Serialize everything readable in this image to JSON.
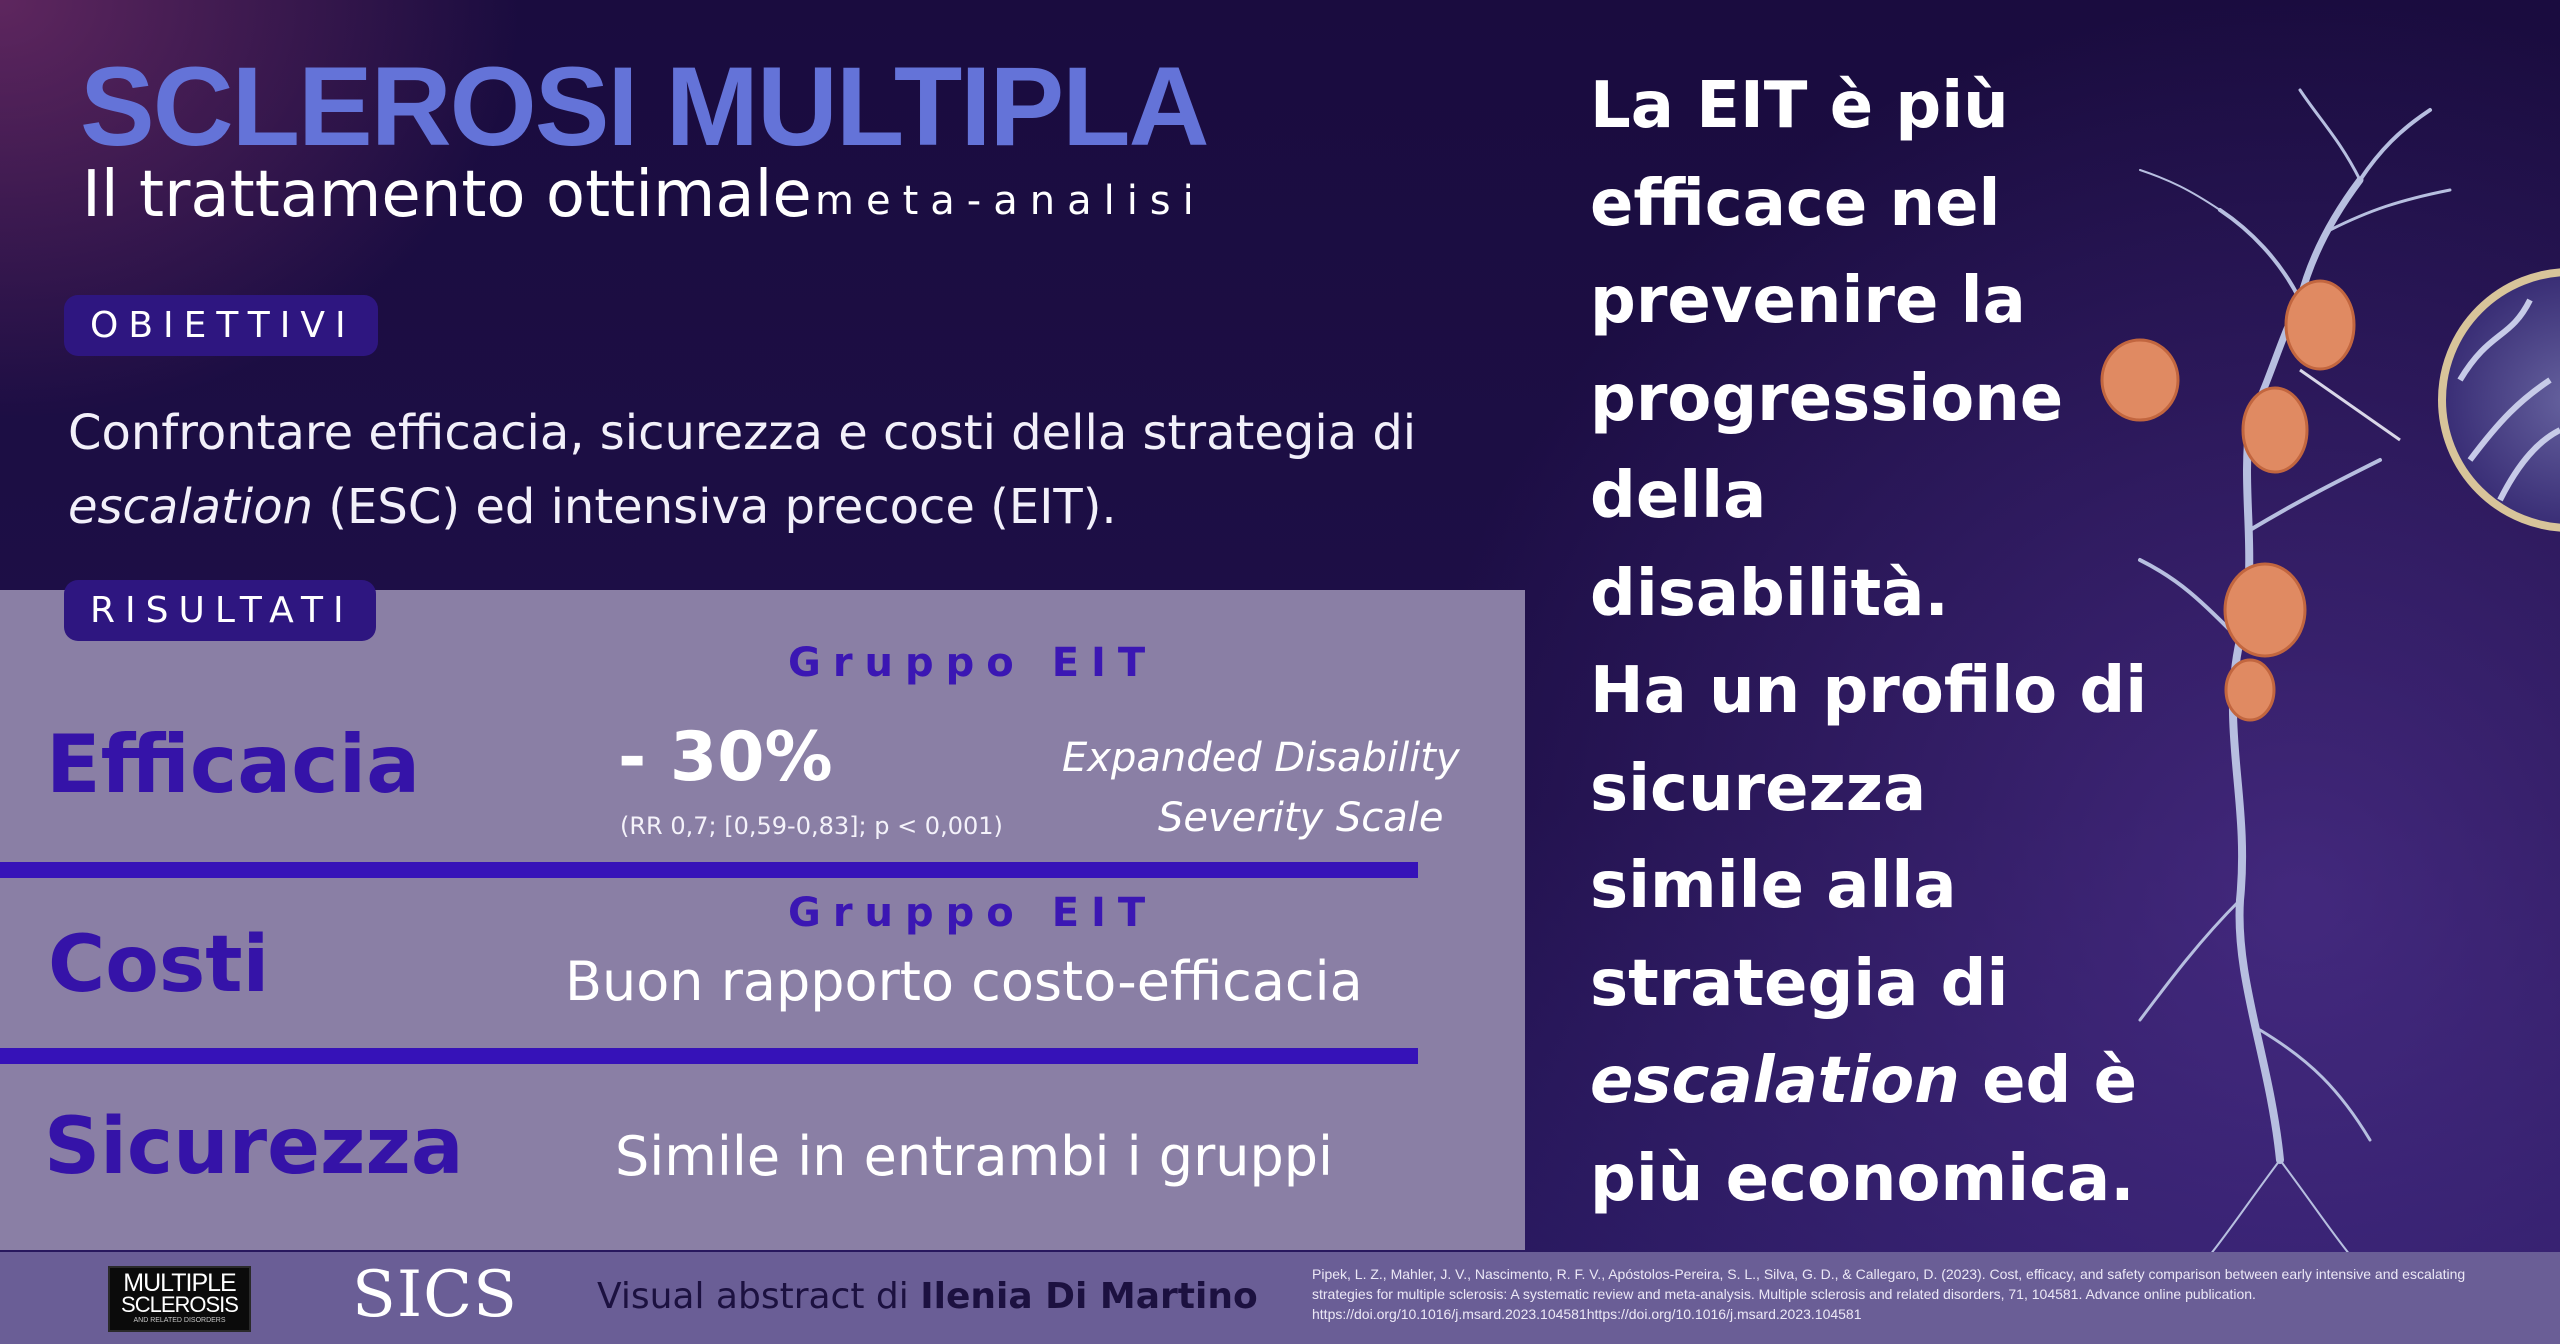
{
  "header": {
    "title": "SCLEROSI MULTIPLA",
    "subtitle": "Il trattamento ottimale",
    "method": "meta-analisi"
  },
  "objectives": {
    "label": "OBIETTIVI",
    "text_pre": "Confrontare efficacia, sicurezza e costi della strategia di ",
    "text_em": "escalation",
    "text_post": " (ESC) ed intensiva precoce (EIT)."
  },
  "results": {
    "label": "RISULTATI",
    "efficacy": {
      "label": "Efficacia",
      "group": "Gruppo EIT",
      "value": "- 30%",
      "stats": "(RR 0,7; [0,59-0,83]; p < 0,001)",
      "scale_line1": "Expanded Disability",
      "scale_line2": "Severity Scale"
    },
    "costs": {
      "label": "Costi",
      "group": "Gruppo EIT",
      "text": "Buon rapporto costo-efficacia"
    },
    "safety": {
      "label": "Sicurezza",
      "text": "Simile in entrambi i gruppi"
    }
  },
  "conclusion": {
    "lines": [
      "La  EIT è più",
      "efficace nel",
      "prevenire la",
      "progressione",
      "della",
      "disabilità.",
      "Ha un profilo di",
      "sicurezza",
      "simile alla",
      "strategia di"
    ],
    "line11_em": "escalation",
    "line11_rest": " ed è",
    "line12": "più economica."
  },
  "footer": {
    "logo_ms_line1": "MULTIPLE",
    "logo_ms_line2": "SCLEROSIS",
    "logo_ms_line3": "AND RELATED DISORDERS",
    "logo_sics": "SICS",
    "credit_prefix": "Visual abstract di ",
    "credit_author": "Ilenia Di Martino",
    "citation": "Pipek, L. Z., Mahler, J. V., Nascimento, R. F. V., Apóstolos-Pereira, S. L., Silva, G. D., & Callegaro, D. (2023). Cost, efficacy, and safety comparison between early intensive and escalating strategies for multiple sclerosis: A systematic review and meta-analysis. Multiple sclerosis and related disorders, 71, 104581. Advance online publication. https://doi.org/10.1016/j.msard.2023.104581https://doi.org/10.1016/j.msard.2023.104581"
  },
  "colors": {
    "background": "#1b0d3d",
    "title_blue": "#6473d8",
    "accent_purple": "#3513a8",
    "panel": "#8a7fa5",
    "footer": "#6a5e96",
    "myelin_orange": "#e08a62"
  }
}
